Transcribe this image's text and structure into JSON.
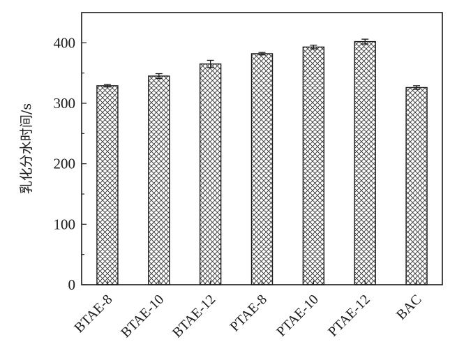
{
  "chart_data": {
    "type": "bar",
    "title": "",
    "xlabel": "",
    "ylabel": "乳化分水时间/s",
    "categories": [
      "BTAE-8",
      "BTAE-10",
      "BTAE-12",
      "PTAE-8",
      "PTAE-10",
      "PTAE-12",
      "BAC"
    ],
    "values": [
      329,
      345,
      365,
      382,
      393,
      402,
      326
    ],
    "errors": [
      2,
      4,
      6,
      2,
      3,
      4,
      3
    ],
    "ylim": [
      0,
      450
    ],
    "yticks": [
      0,
      100,
      200,
      300,
      400
    ],
    "grid": false,
    "legend": "none",
    "bar_pattern": "crosshatch",
    "colors": {
      "bar_fill": "#ffffff",
      "hatch": "#333333",
      "axis": "#1a1a1a"
    }
  }
}
